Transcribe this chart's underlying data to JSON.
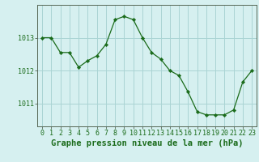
{
  "x": [
    0,
    1,
    2,
    3,
    4,
    5,
    6,
    7,
    8,
    9,
    10,
    11,
    12,
    13,
    14,
    15,
    16,
    17,
    18,
    19,
    20,
    21,
    22,
    23
  ],
  "y": [
    1013.0,
    1013.0,
    1012.55,
    1012.55,
    1012.1,
    1012.3,
    1012.45,
    1012.8,
    1013.55,
    1013.65,
    1013.55,
    1013.0,
    1012.55,
    1012.35,
    1012.0,
    1011.85,
    1011.35,
    1010.75,
    1010.65,
    1010.65,
    1010.65,
    1010.8,
    1011.65,
    1012.0
  ],
  "line_color": "#1a6b1a",
  "marker_color": "#1a6b1a",
  "bg_color": "#d6f0f0",
  "grid_color": "#aad4d4",
  "axis_color": "#556655",
  "label_color": "#1a6b1a",
  "title": "Graphe pression niveau de la mer (hPa)",
  "xlim": [
    -0.5,
    23.5
  ],
  "ylim": [
    1010.3,
    1014.0
  ],
  "yticks": [
    1011,
    1012,
    1013
  ],
  "title_fontsize": 7.5,
  "tick_fontsize": 6.0
}
